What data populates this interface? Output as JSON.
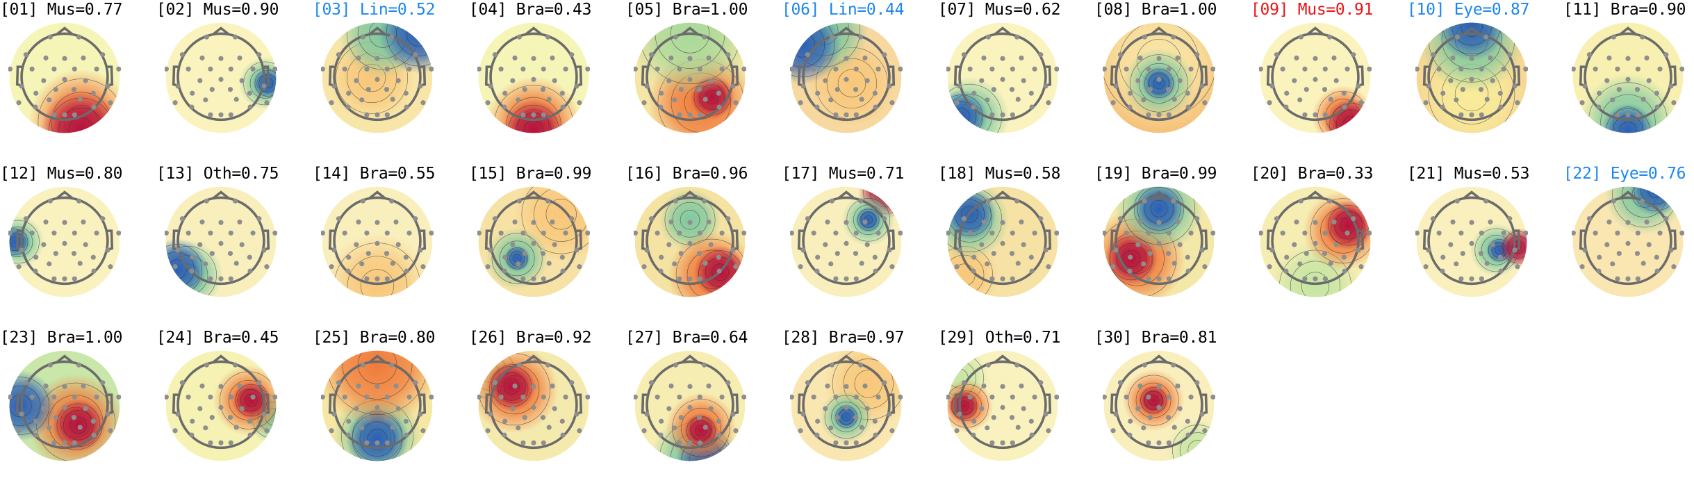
{
  "colors": {
    "default": "#000000",
    "highlight_blue": "#1a86f0",
    "highlight_red": "#ee1111"
  },
  "components": [
    {
      "label": "[01] Mus=0.77",
      "color": "default"
    },
    {
      "label": "[02] Mus=0.90",
      "color": "default"
    },
    {
      "label": "[03] Lin=0.52",
      "color": "highlight_blue"
    },
    {
      "label": "[04] Bra=0.43",
      "color": "default"
    },
    {
      "label": "[05] Bra=1.00",
      "color": "default"
    },
    {
      "label": "[06] Lin=0.44",
      "color": "highlight_blue"
    },
    {
      "label": "[07] Mus=0.62",
      "color": "default"
    },
    {
      "label": "[08] Bra=1.00",
      "color": "default"
    },
    {
      "label": "[09] Mus=0.91",
      "color": "highlight_red"
    },
    {
      "label": "[10] Eye=0.87",
      "color": "highlight_blue"
    },
    {
      "label": "[11] Bra=0.90",
      "color": "default"
    },
    {
      "label": "[12] Mus=0.80",
      "color": "default"
    },
    {
      "label": "[13] Oth=0.75",
      "color": "default"
    },
    {
      "label": "[14] Bra=0.55",
      "color": "default"
    },
    {
      "label": "[15] Bra=0.99",
      "color": "default"
    },
    {
      "label": "[16] Bra=0.96",
      "color": "default"
    },
    {
      "label": "[17] Mus=0.71",
      "color": "default"
    },
    {
      "label": "[18] Mus=0.58",
      "color": "default"
    },
    {
      "label": "[19] Bra=0.99",
      "color": "default"
    },
    {
      "label": "[20] Bra=0.33",
      "color": "default"
    },
    {
      "label": "[21] Mus=0.53",
      "color": "default"
    },
    {
      "label": "[22] Eye=0.76",
      "color": "highlight_blue"
    },
    {
      "label": "[23] Bra=1.00",
      "color": "default"
    },
    {
      "label": "[24] Bra=0.45",
      "color": "default"
    },
    {
      "label": "[25] Bra=0.80",
      "color": "default"
    },
    {
      "label": "[26] Bra=0.92",
      "color": "default"
    },
    {
      "label": "[27] Bra=0.64",
      "color": "default"
    },
    {
      "label": "[28] Bra=0.97",
      "color": "default"
    },
    {
      "label": "[29] Oth=0.71",
      "color": "default"
    },
    {
      "label": "[30] Bra=0.81",
      "color": "default"
    }
  ]
}
